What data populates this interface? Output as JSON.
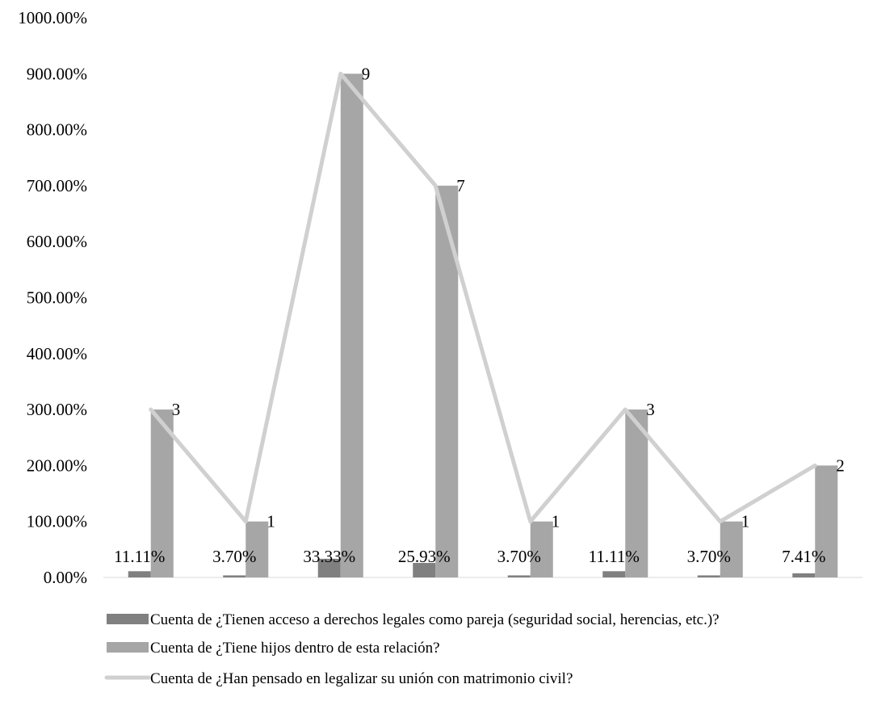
{
  "chart_data": {
    "type": "bar",
    "categories": [
      "",
      "",
      "",
      "",
      "",
      "",
      "",
      ""
    ],
    "ylim": [
      0,
      10
    ],
    "y_ticks": [
      "0.00%",
      "100.00%",
      "200.00%",
      "300.00%",
      "400.00%",
      "500.00%",
      "600.00%",
      "700.00%",
      "800.00%",
      "900.00%",
      "1000.00%"
    ],
    "grid": false,
    "legend_position": "bottom",
    "series": [
      {
        "name": "Cuenta de ¿Tienen acceso a derechos legales como pareja (seguridad social, herencias, etc.)?",
        "type": "bar",
        "color": "#808080",
        "values": [
          0.1111,
          0.037,
          0.3333,
          0.2593,
          0.037,
          0.1111,
          0.037,
          0.0741
        ],
        "labels": [
          "11.11%",
          "3.70%",
          "33.33%",
          "25.93%",
          "3.70%",
          "11.11%",
          "3.70%",
          "7.41%"
        ]
      },
      {
        "name": "Cuenta de ¿Tiene hijos dentro de esta relación?",
        "type": "bar",
        "color": "#a6a6a6",
        "values": [
          3,
          1,
          9,
          7,
          1,
          3,
          1,
          2
        ],
        "labels": [
          "3",
          "1",
          "9",
          "7",
          "1",
          "3",
          "1",
          "2"
        ]
      },
      {
        "name": "Cuenta de ¿Han pensado en legalizar su unión con matrimonio civil?",
        "type": "line",
        "color": "#d0d0d0",
        "values": [
          3,
          1,
          9,
          7,
          1,
          3,
          1,
          2
        ]
      }
    ]
  }
}
